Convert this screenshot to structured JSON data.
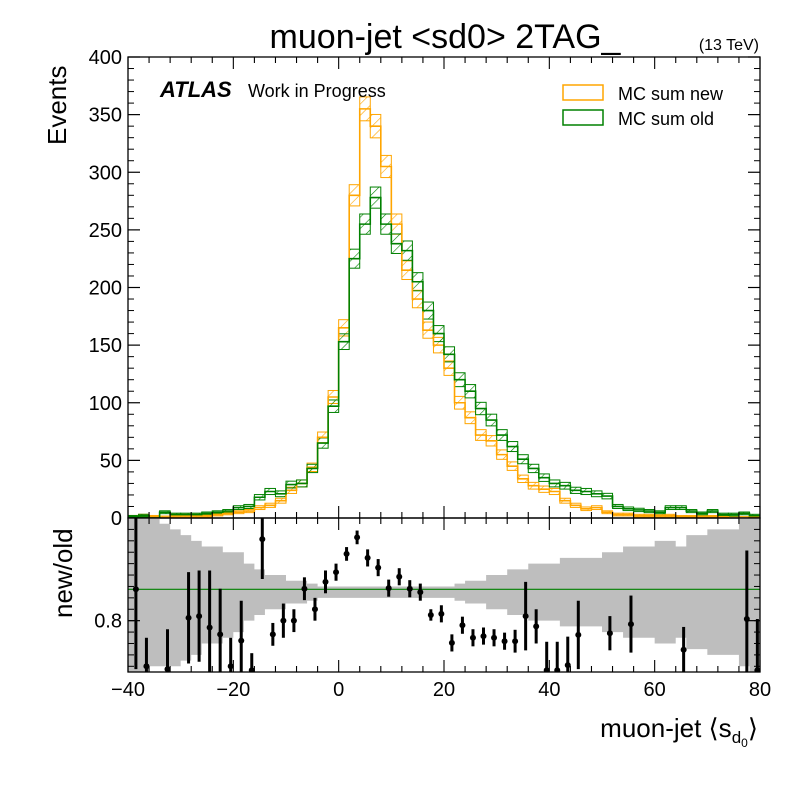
{
  "chart_data": {
    "type": "histogram-with-ratio",
    "title": "muon-jet <sd0> 2TAG_",
    "energy_label": "(13 TeV)",
    "experiment_label": "ATLAS",
    "status_label": "Work in Progress",
    "xlabel_main": "muon-jet ⟨s",
    "xlabel_sub": "d",
    "xlabel_subsub": "0",
    "xlabel_close": "⟩",
    "ylabel": "Events",
    "ratio_ylabel": "new/old",
    "xlim": [
      -40,
      80
    ],
    "ylim": [
      0,
      400
    ],
    "ratio_ylim": [
      0.71,
      0.98
    ],
    "x_ticks": [
      -40,
      -20,
      0,
      20,
      40,
      60,
      80
    ],
    "y_ticks": [
      0,
      50,
      100,
      150,
      200,
      250,
      300,
      350,
      400
    ],
    "ratio_y_ticks": [
      0.8
    ],
    "legend_position": "top-right",
    "colors": {
      "new": "#ffa500",
      "old": "#008000",
      "band": "#bebebe",
      "ratio_line": "#008000"
    },
    "bins": {
      "start": -40,
      "width": 2,
      "series": [
        {
          "name": "MC sum new",
          "values": [
            1,
            2,
            1,
            0.5,
            2,
            2,
            2,
            2,
            3,
            4,
            5,
            6,
            9,
            11,
            15,
            24,
            30,
            44,
            70,
            105,
            165,
            280,
            355,
            340,
            305,
            255,
            215,
            190,
            163,
            150,
            130,
            100,
            87,
            72,
            67,
            55,
            45,
            34,
            28,
            25,
            23,
            15,
            11,
            8,
            9,
            5,
            3,
            3,
            2,
            2,
            2,
            2,
            1,
            1,
            1,
            1,
            1,
            0,
            0,
            1
          ]
        },
        {
          "name": "MC sum old",
          "values": [
            1,
            2,
            0,
            5,
            3,
            3,
            3,
            4,
            5,
            6,
            9,
            10,
            18,
            23,
            21,
            29,
            30,
            43,
            65,
            97,
            153,
            225,
            255,
            278,
            255,
            238,
            232,
            205,
            180,
            160,
            142,
            120,
            110,
            95,
            85,
            72,
            62,
            51,
            43,
            35,
            30,
            28,
            24,
            23,
            21,
            19,
            10,
            8,
            7,
            6,
            5,
            9,
            9,
            6,
            4,
            6,
            3,
            3,
            4,
            2
          ]
        }
      ]
    },
    "ratio": {
      "x": [
        -38.5,
        -36.5,
        -32.5,
        -28.5,
        -26.5,
        -24.5,
        -22.5,
        -20.5,
        -18.5,
        -16.5,
        -14.5,
        -12.5,
        -10.5,
        -8.5,
        -6.5,
        -4.5,
        -2.5,
        -0.5,
        1.5,
        3.5,
        5.5,
        7.5,
        9.5,
        11.5,
        13.5,
        15.5,
        17.5,
        19.5,
        21.5,
        23.5,
        25.5,
        27.5,
        29.5,
        31.5,
        33.5,
        35.5,
        37.5,
        39.5,
        41.5,
        43.5,
        45.5,
        51.5,
        55.5,
        65.5,
        77.5,
        79.5
      ],
      "y": [
        0.855,
        0.72,
        0.715,
        0.805,
        0.808,
        0.788,
        0.776,
        0.72,
        0.765,
        0.713,
        0.943,
        0.776,
        0.8,
        0.8,
        0.856,
        0.82,
        0.868,
        0.885,
        0.917,
        0.946,
        0.91,
        0.893,
        0.857,
        0.877,
        0.856,
        0.85,
        0.81,
        0.812,
        0.761,
        0.792,
        0.77,
        0.773,
        0.77,
        0.764,
        0.764,
        0.808,
        0.79,
        0.713,
        0.713,
        0.722,
        0.775,
        0.778,
        0.794,
        0.749,
        0.803,
        0.713
      ],
      "err": [
        0.14,
        0.05,
        0.07,
        0.08,
        0.08,
        0.1,
        0.08,
        0.05,
        0.07,
        0.03,
        0.07,
        0.02,
        0.03,
        0.02,
        0.02,
        0.02,
        0.02,
        0.015,
        0.012,
        0.012,
        0.015,
        0.015,
        0.015,
        0.015,
        0.015,
        0.015,
        0.01,
        0.015,
        0.015,
        0.015,
        0.015,
        0.015,
        0.015,
        0.015,
        0.02,
        0.06,
        0.03,
        0.05,
        0.05,
        0.05,
        0.06,
        0.03,
        0.05,
        0.04,
        0.12,
        0.09
      ]
    },
    "band": {
      "lo": [
        0.7,
        0.7,
        0.72,
        0.72,
        0.72,
        0.73,
        0.74,
        0.76,
        0.76,
        0.77,
        0.78,
        0.8,
        0.81,
        0.82,
        0.82,
        0.83,
        0.83,
        0.835,
        0.84,
        0.84,
        0.84,
        0.84,
        0.84,
        0.84,
        0.84,
        0.84,
        0.84,
        0.84,
        0.84,
        0.84,
        0.84,
        0.835,
        0.83,
        0.83,
        0.82,
        0.82,
        0.81,
        0.81,
        0.8,
        0.8,
        0.8,
        0.79,
        0.79,
        0.79,
        0.79,
        0.78,
        0.78,
        0.77,
        0.77,
        0.77,
        0.76,
        0.76,
        0.77,
        0.75,
        0.75,
        0.74,
        0.74,
        0.74,
        0.72,
        0.7
      ],
      "hi": [
        0.98,
        0.98,
        0.98,
        0.97,
        0.96,
        0.95,
        0.94,
        0.93,
        0.93,
        0.92,
        0.92,
        0.9,
        0.89,
        0.88,
        0.88,
        0.87,
        0.87,
        0.865,
        0.86,
        0.86,
        0.86,
        0.86,
        0.86,
        0.86,
        0.86,
        0.86,
        0.86,
        0.86,
        0.86,
        0.86,
        0.86,
        0.865,
        0.87,
        0.87,
        0.88,
        0.88,
        0.89,
        0.89,
        0.9,
        0.9,
        0.9,
        0.91,
        0.91,
        0.91,
        0.91,
        0.92,
        0.92,
        0.93,
        0.93,
        0.93,
        0.94,
        0.94,
        0.93,
        0.95,
        0.95,
        0.96,
        0.96,
        0.96,
        0.98,
        0.98
      ]
    },
    "ratio_reference": 0.855
  }
}
